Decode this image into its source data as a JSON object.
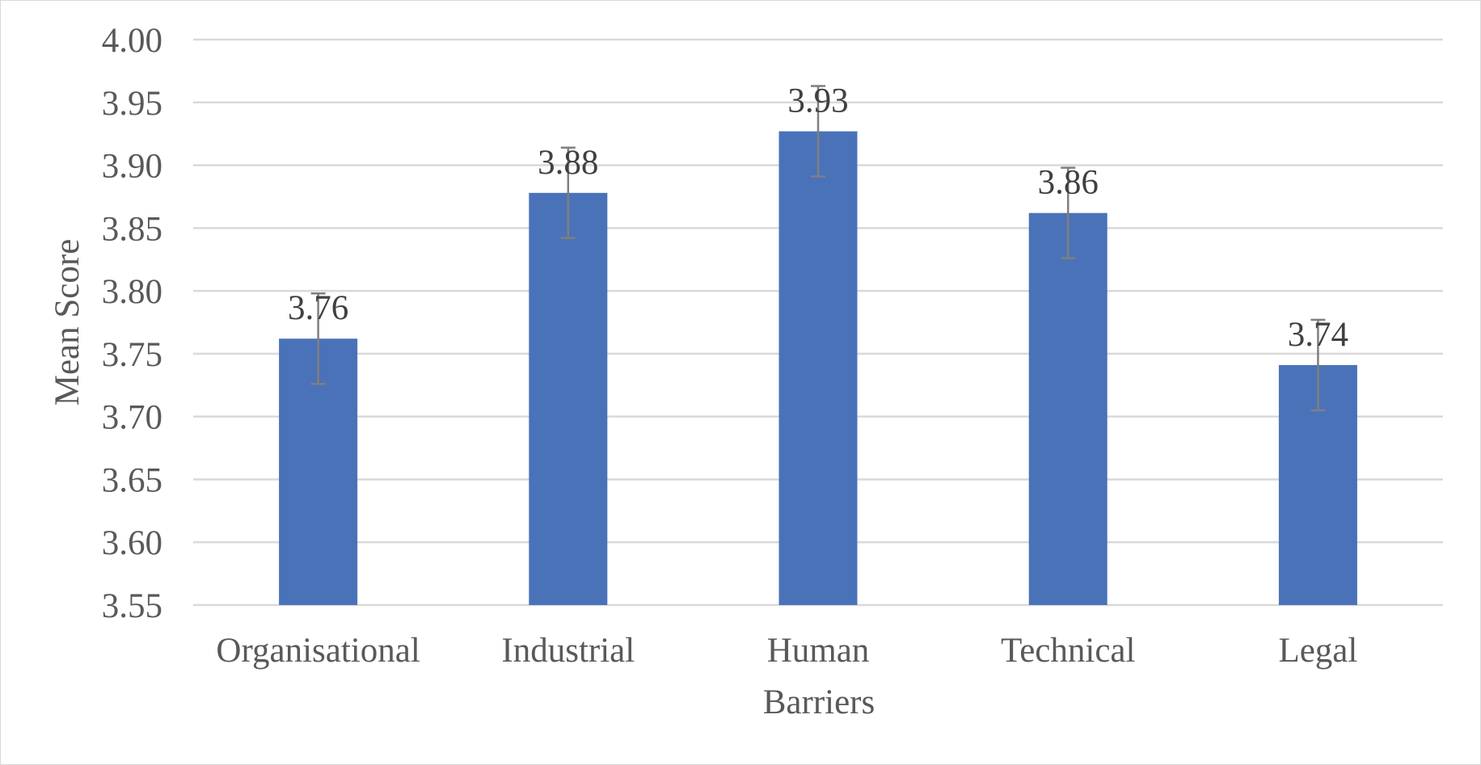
{
  "chart_data": {
    "type": "bar",
    "title": "",
    "xlabel": "Barriers",
    "ylabel": "Mean Score",
    "categories": [
      "Organisational",
      "Industrial",
      "Human",
      "Technical",
      "Legal"
    ],
    "values": [
      3.762,
      3.878,
      3.927,
      3.862,
      3.741
    ],
    "data_labels": [
      "3.76",
      "3.88",
      "3.93",
      "3.86",
      "3.74"
    ],
    "error_bars": [
      0.036,
      0.036,
      0.036,
      0.036,
      0.036
    ],
    "ylim": [
      3.55,
      4.0
    ],
    "yticks": [
      "3.55",
      "3.60",
      "3.65",
      "3.70",
      "3.75",
      "3.80",
      "3.85",
      "3.90",
      "3.95",
      "4.00"
    ],
    "grid": true,
    "legend": "none",
    "colors": {
      "bar": "#4a72b8",
      "error_bar": "#7f7f7f",
      "grid": "#d9d9d9",
      "text": "#595959"
    }
  }
}
